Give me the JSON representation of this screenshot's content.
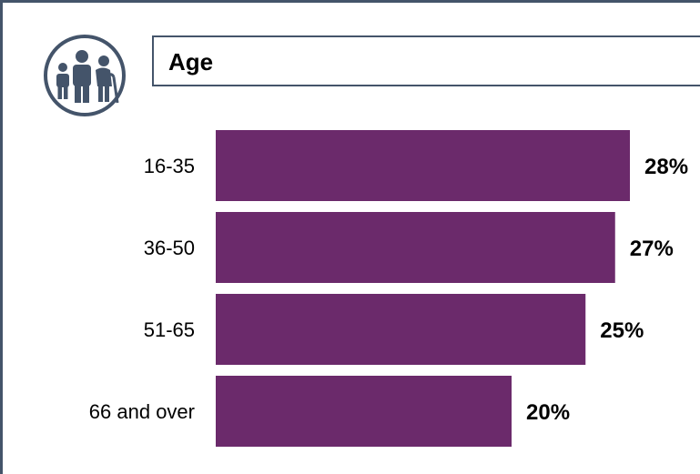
{
  "title": "Age",
  "icon": "family-icon",
  "colors": {
    "bar": "#6b2a6b",
    "frame": "#44546a"
  },
  "chart_data": {
    "type": "bar",
    "orientation": "horizontal",
    "categories": [
      "16-35",
      "36-50",
      "51-65",
      "66 and over"
    ],
    "values": [
      28,
      27,
      25,
      20
    ],
    "value_labels": [
      "28%",
      "27%",
      "25%",
      "20%"
    ],
    "xlim": [
      0,
      28
    ]
  }
}
